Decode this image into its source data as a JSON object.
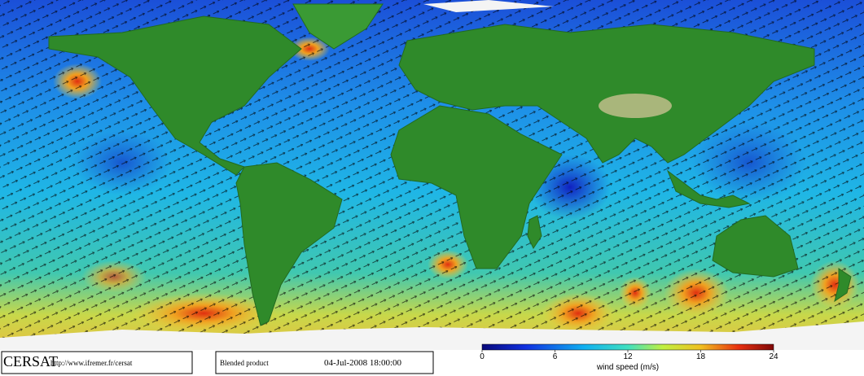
{
  "logo": {
    "name": "CERSAT",
    "url": "http://www.ifremer.fr/cersat"
  },
  "product": "Blended product",
  "timestamp": "04-Jul-2008 18:00:00",
  "colorbar": {
    "label": "wind speed (m/s)",
    "range": [
      0,
      24
    ],
    "ticks": [
      0,
      6,
      12,
      18,
      24
    ]
  }
}
